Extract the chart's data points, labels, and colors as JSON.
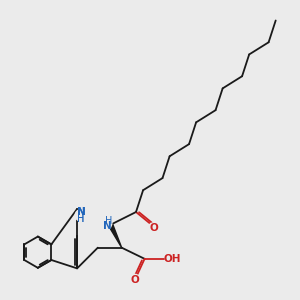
{
  "bg_color": "#ebebeb",
  "line_color": "#1a1a1a",
  "n_color": "#2266bb",
  "o_color": "#cc2222",
  "bond_width": 1.3,
  "figsize": [
    3.0,
    3.0
  ],
  "dpi": 100,
  "xlim": [
    0.0,
    10.0
  ],
  "ylim": [
    0.0,
    10.0
  ]
}
